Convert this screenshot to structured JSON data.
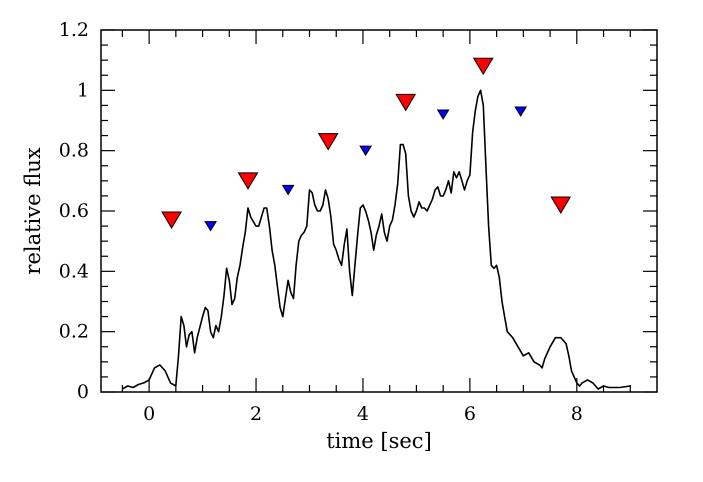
{
  "chart_data": {
    "type": "line",
    "title": "",
    "xlabel": "time [sec]",
    "ylabel": "relative flux",
    "xlim": [
      -0.9,
      9.5
    ],
    "ylim": [
      0,
      1.2
    ],
    "grid": false,
    "x_ticks": [
      0,
      2,
      4,
      6,
      8
    ],
    "x_tick_labels": [
      "0",
      "2",
      "4",
      "6",
      "8"
    ],
    "y_ticks": [
      0,
      0.2,
      0.4,
      0.6,
      0.8,
      1,
      1.2
    ],
    "y_tick_labels": [
      "0",
      "0.2",
      "0.4",
      "0.6",
      "0.8",
      "1",
      "1.2"
    ],
    "series": [
      {
        "color": "#000000",
        "points": [
          [
            -0.5,
            0.01
          ],
          [
            -0.4,
            0.02
          ],
          [
            -0.3,
            0.015
          ],
          [
            -0.2,
            0.025
          ],
          [
            -0.1,
            0.03
          ],
          [
            0.0,
            0.04
          ],
          [
            0.1,
            0.08
          ],
          [
            0.2,
            0.09
          ],
          [
            0.3,
            0.07
          ],
          [
            0.4,
            0.03
          ],
          [
            0.5,
            0.02
          ],
          [
            0.55,
            0.12
          ],
          [
            0.6,
            0.25
          ],
          [
            0.65,
            0.22
          ],
          [
            0.7,
            0.15
          ],
          [
            0.75,
            0.19
          ],
          [
            0.8,
            0.2
          ],
          [
            0.85,
            0.13
          ],
          [
            0.9,
            0.18
          ],
          [
            1.0,
            0.25
          ],
          [
            1.05,
            0.28
          ],
          [
            1.1,
            0.27
          ],
          [
            1.15,
            0.2
          ],
          [
            1.2,
            0.18
          ],
          [
            1.25,
            0.22
          ],
          [
            1.3,
            0.2
          ],
          [
            1.35,
            0.25
          ],
          [
            1.4,
            0.32
          ],
          [
            1.45,
            0.41
          ],
          [
            1.5,
            0.37
          ],
          [
            1.55,
            0.29
          ],
          [
            1.6,
            0.31
          ],
          [
            1.65,
            0.38
          ],
          [
            1.7,
            0.42
          ],
          [
            1.75,
            0.48
          ],
          [
            1.8,
            0.53
          ],
          [
            1.85,
            0.61
          ],
          [
            1.9,
            0.58
          ],
          [
            2.0,
            0.55
          ],
          [
            2.05,
            0.55
          ],
          [
            2.1,
            0.58
          ],
          [
            2.15,
            0.61
          ],
          [
            2.2,
            0.61
          ],
          [
            2.25,
            0.55
          ],
          [
            2.3,
            0.47
          ],
          [
            2.35,
            0.42
          ],
          [
            2.4,
            0.35
          ],
          [
            2.45,
            0.28
          ],
          [
            2.5,
            0.25
          ],
          [
            2.55,
            0.31
          ],
          [
            2.6,
            0.37
          ],
          [
            2.65,
            0.33
          ],
          [
            2.7,
            0.31
          ],
          [
            2.75,
            0.42
          ],
          [
            2.8,
            0.5
          ],
          [
            2.85,
            0.52
          ],
          [
            2.9,
            0.53
          ],
          [
            2.95,
            0.55
          ],
          [
            3.0,
            0.67
          ],
          [
            3.05,
            0.66
          ],
          [
            3.1,
            0.62
          ],
          [
            3.15,
            0.6
          ],
          [
            3.2,
            0.6
          ],
          [
            3.25,
            0.62
          ],
          [
            3.3,
            0.67
          ],
          [
            3.35,
            0.64
          ],
          [
            3.4,
            0.58
          ],
          [
            3.45,
            0.49
          ],
          [
            3.5,
            0.47
          ],
          [
            3.55,
            0.44
          ],
          [
            3.6,
            0.42
          ],
          [
            3.65,
            0.49
          ],
          [
            3.7,
            0.54
          ],
          [
            3.75,
            0.4
          ],
          [
            3.8,
            0.32
          ],
          [
            3.85,
            0.42
          ],
          [
            3.9,
            0.52
          ],
          [
            3.95,
            0.61
          ],
          [
            4.0,
            0.62
          ],
          [
            4.05,
            0.6
          ],
          [
            4.1,
            0.57
          ],
          [
            4.15,
            0.53
          ],
          [
            4.2,
            0.47
          ],
          [
            4.25,
            0.52
          ],
          [
            4.3,
            0.55
          ],
          [
            4.35,
            0.59
          ],
          [
            4.4,
            0.53
          ],
          [
            4.45,
            0.5
          ],
          [
            4.5,
            0.55
          ],
          [
            4.55,
            0.57
          ],
          [
            4.6,
            0.62
          ],
          [
            4.65,
            0.69
          ],
          [
            4.7,
            0.82
          ],
          [
            4.75,
            0.82
          ],
          [
            4.8,
            0.79
          ],
          [
            4.85,
            0.65
          ],
          [
            4.9,
            0.6
          ],
          [
            4.95,
            0.58
          ],
          [
            5.0,
            0.6
          ],
          [
            5.05,
            0.63
          ],
          [
            5.1,
            0.61
          ],
          [
            5.15,
            0.61
          ],
          [
            5.2,
            0.6
          ],
          [
            5.25,
            0.62
          ],
          [
            5.3,
            0.64
          ],
          [
            5.35,
            0.67
          ],
          [
            5.4,
            0.68
          ],
          [
            5.45,
            0.65
          ],
          [
            5.5,
            0.65
          ],
          [
            5.55,
            0.67
          ],
          [
            5.6,
            0.7
          ],
          [
            5.65,
            0.66
          ],
          [
            5.7,
            0.73
          ],
          [
            5.75,
            0.71
          ],
          [
            5.8,
            0.73
          ],
          [
            5.85,
            0.7
          ],
          [
            5.9,
            0.67
          ],
          [
            5.95,
            0.7
          ],
          [
            6.0,
            0.72
          ],
          [
            6.05,
            0.86
          ],
          [
            6.1,
            0.93
          ],
          [
            6.15,
            0.98
          ],
          [
            6.2,
            1.0
          ],
          [
            6.25,
            0.95
          ],
          [
            6.3,
            0.75
          ],
          [
            6.35,
            0.55
          ],
          [
            6.4,
            0.42
          ],
          [
            6.45,
            0.41
          ],
          [
            6.5,
            0.42
          ],
          [
            6.55,
            0.38
          ],
          [
            6.6,
            0.3
          ],
          [
            6.65,
            0.25
          ],
          [
            6.7,
            0.2
          ],
          [
            6.8,
            0.18
          ],
          [
            6.9,
            0.15
          ],
          [
            7.0,
            0.12
          ],
          [
            7.1,
            0.13
          ],
          [
            7.2,
            0.1
          ],
          [
            7.3,
            0.09
          ],
          [
            7.35,
            0.08
          ],
          [
            7.4,
            0.11
          ],
          [
            7.5,
            0.15
          ],
          [
            7.6,
            0.18
          ],
          [
            7.7,
            0.18
          ],
          [
            7.8,
            0.16
          ],
          [
            7.85,
            0.12
          ],
          [
            7.9,
            0.07
          ],
          [
            8.0,
            0.03
          ],
          [
            8.05,
            0.02
          ],
          [
            8.1,
            0.03
          ],
          [
            8.2,
            0.04
          ],
          [
            8.3,
            0.03
          ],
          [
            8.4,
            0.01
          ],
          [
            8.5,
            0.02
          ],
          [
            8.6,
            0.015
          ],
          [
            8.8,
            0.015
          ],
          [
            9.0,
            0.02
          ]
        ]
      }
    ],
    "markers": [
      {
        "color": "#ff0000",
        "size": "large",
        "points": [
          [
            0.42,
            0.57
          ],
          [
            1.85,
            0.7
          ],
          [
            3.35,
            0.83
          ],
          [
            4.8,
            0.96
          ],
          [
            6.25,
            1.08
          ],
          [
            7.7,
            0.62
          ]
        ]
      },
      {
        "color": "#0000ff",
        "size": "small",
        "points": [
          [
            1.15,
            0.55
          ],
          [
            2.6,
            0.67
          ],
          [
            4.05,
            0.8
          ],
          [
            5.5,
            0.92
          ],
          [
            6.95,
            0.93
          ]
        ]
      }
    ]
  }
}
